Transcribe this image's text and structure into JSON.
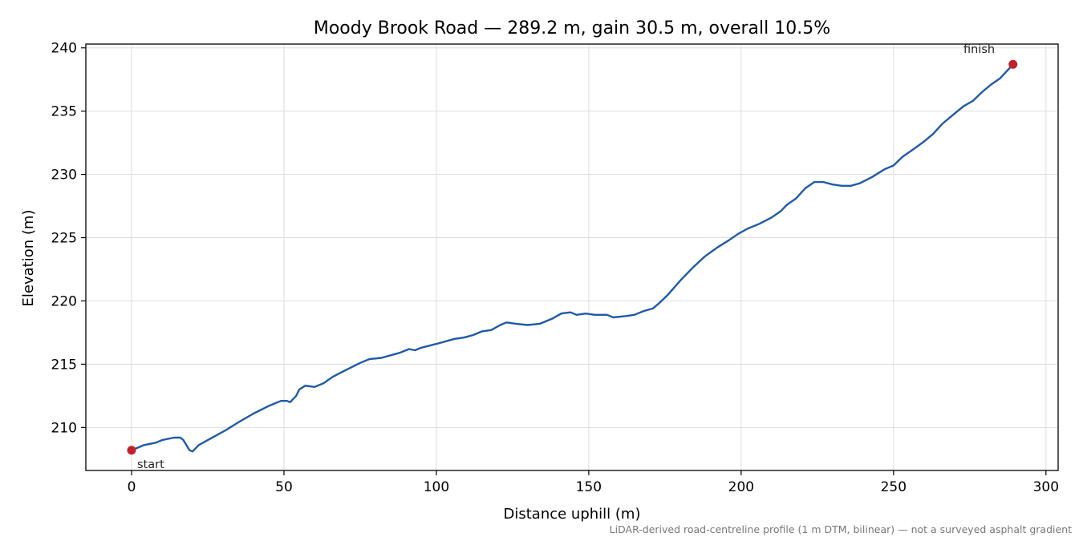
{
  "chart_data": {
    "type": "line",
    "title": "Moody Brook Road — 289.2 m, gain 30.5 m, overall 10.5%",
    "xlabel": "Distance uphill (m)",
    "ylabel": "Elevation (m)",
    "xlim": [
      -15,
      304
    ],
    "ylim": [
      206.6,
      240.3
    ],
    "xticks": [
      0,
      50,
      100,
      150,
      200,
      250,
      300
    ],
    "yticks": [
      210,
      215,
      220,
      225,
      230,
      235,
      240
    ],
    "grid": true,
    "colors": {
      "line": "#1f5aa6",
      "marker": "#c0222a",
      "grid": "#dddddd"
    },
    "series": [
      {
        "points": [
          [
            0,
            208.2
          ],
          [
            2,
            208.4
          ],
          [
            4,
            208.6
          ],
          [
            6,
            208.7
          ],
          [
            8,
            208.8
          ],
          [
            10,
            209.0
          ],
          [
            12,
            209.1
          ],
          [
            14,
            209.2
          ],
          [
            16,
            209.2
          ],
          [
            17,
            209.0
          ],
          [
            18,
            208.6
          ],
          [
            19,
            208.2
          ],
          [
            20,
            208.1
          ],
          [
            22,
            208.6
          ],
          [
            25,
            209.0
          ],
          [
            28,
            209.4
          ],
          [
            31,
            209.8
          ],
          [
            35,
            210.4
          ],
          [
            40,
            211.1
          ],
          [
            45,
            211.7
          ],
          [
            49,
            212.1
          ],
          [
            51,
            212.1
          ],
          [
            52,
            212.0
          ],
          [
            54,
            212.5
          ],
          [
            55,
            213.0
          ],
          [
            57,
            213.3
          ],
          [
            60,
            213.2
          ],
          [
            63,
            213.5
          ],
          [
            66,
            214.0
          ],
          [
            70,
            214.5
          ],
          [
            75,
            215.1
          ],
          [
            78,
            215.4
          ],
          [
            82,
            215.5
          ],
          [
            85,
            215.7
          ],
          [
            88,
            215.9
          ],
          [
            91,
            216.2
          ],
          [
            93,
            216.1
          ],
          [
            95,
            216.3
          ],
          [
            100,
            216.6
          ],
          [
            106,
            217.0
          ],
          [
            109,
            217.1
          ],
          [
            112,
            217.3
          ],
          [
            115,
            217.6
          ],
          [
            118,
            217.7
          ],
          [
            121,
            218.1
          ],
          [
            123,
            218.3
          ],
          [
            126,
            218.2
          ],
          [
            130,
            218.1
          ],
          [
            134,
            218.2
          ],
          [
            138,
            218.6
          ],
          [
            141,
            219.0
          ],
          [
            144,
            219.1
          ],
          [
            146,
            218.9
          ],
          [
            149,
            219.0
          ],
          [
            152,
            218.9
          ],
          [
            156,
            218.9
          ],
          [
            158,
            218.7
          ],
          [
            162,
            218.8
          ],
          [
            165,
            218.9
          ],
          [
            168,
            219.2
          ],
          [
            171,
            219.4
          ],
          [
            173,
            219.8
          ],
          [
            176,
            220.5
          ],
          [
            180,
            221.6
          ],
          [
            184,
            222.6
          ],
          [
            188,
            223.5
          ],
          [
            192,
            224.2
          ],
          [
            196,
            224.8
          ],
          [
            199,
            225.3
          ],
          [
            202,
            225.7
          ],
          [
            206,
            226.1
          ],
          [
            210,
            226.6
          ],
          [
            213,
            227.1
          ],
          [
            215,
            227.6
          ],
          [
            218,
            228.1
          ],
          [
            221,
            228.9
          ],
          [
            224,
            229.4
          ],
          [
            227,
            229.4
          ],
          [
            230,
            229.2
          ],
          [
            233,
            229.1
          ],
          [
            236,
            229.1
          ],
          [
            239,
            229.3
          ],
          [
            243,
            229.8
          ],
          [
            247,
            230.4
          ],
          [
            250,
            230.7
          ],
          [
            253,
            231.4
          ],
          [
            256,
            231.9
          ],
          [
            260,
            232.6
          ],
          [
            263,
            233.2
          ],
          [
            266,
            234.0
          ],
          [
            270,
            234.8
          ],
          [
            273,
            235.4
          ],
          [
            276,
            235.8
          ],
          [
            279,
            236.5
          ],
          [
            282,
            237.1
          ],
          [
            285,
            237.6
          ],
          [
            289.2,
            238.7
          ]
        ]
      }
    ],
    "annotations": [
      {
        "label": "start",
        "x": 0,
        "y": 208.2
      },
      {
        "label": "finish",
        "x": 289.2,
        "y": 238.7
      }
    ],
    "footnote": "LiDAR-derived road-centreline profile (1 m DTM, bilinear) — not a surveyed asphalt gradient"
  }
}
